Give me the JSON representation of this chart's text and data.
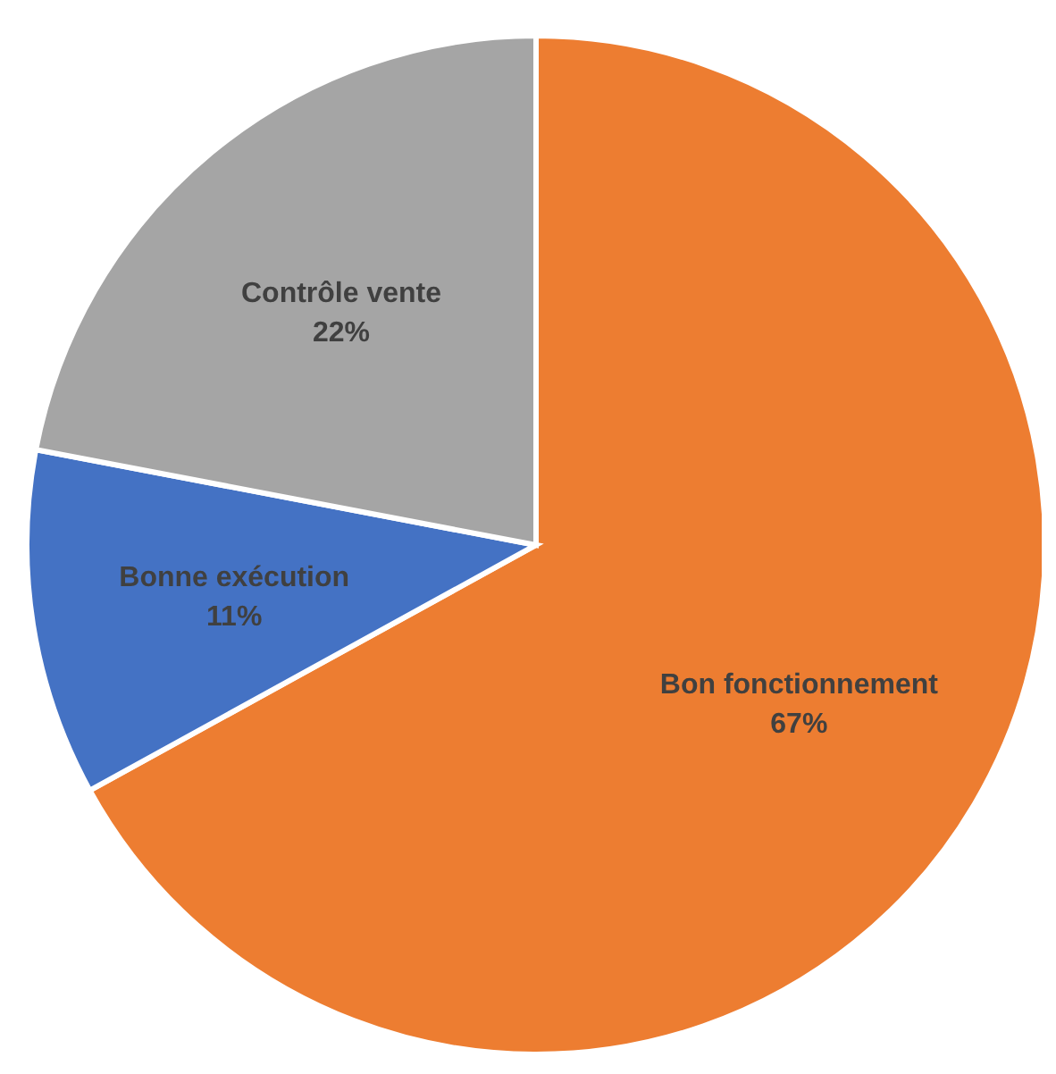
{
  "chart_data": {
    "type": "pie",
    "categories": [
      "Bon fonctionnement",
      "Bonne exécution",
      "Contrôle vente"
    ],
    "values": [
      67,
      11,
      22
    ],
    "colors": [
      "#ed7d31",
      "#4472c4",
      "#a5a5a5"
    ],
    "value_labels": [
      "67%",
      "11%",
      "22%"
    ],
    "legend": false
  }
}
